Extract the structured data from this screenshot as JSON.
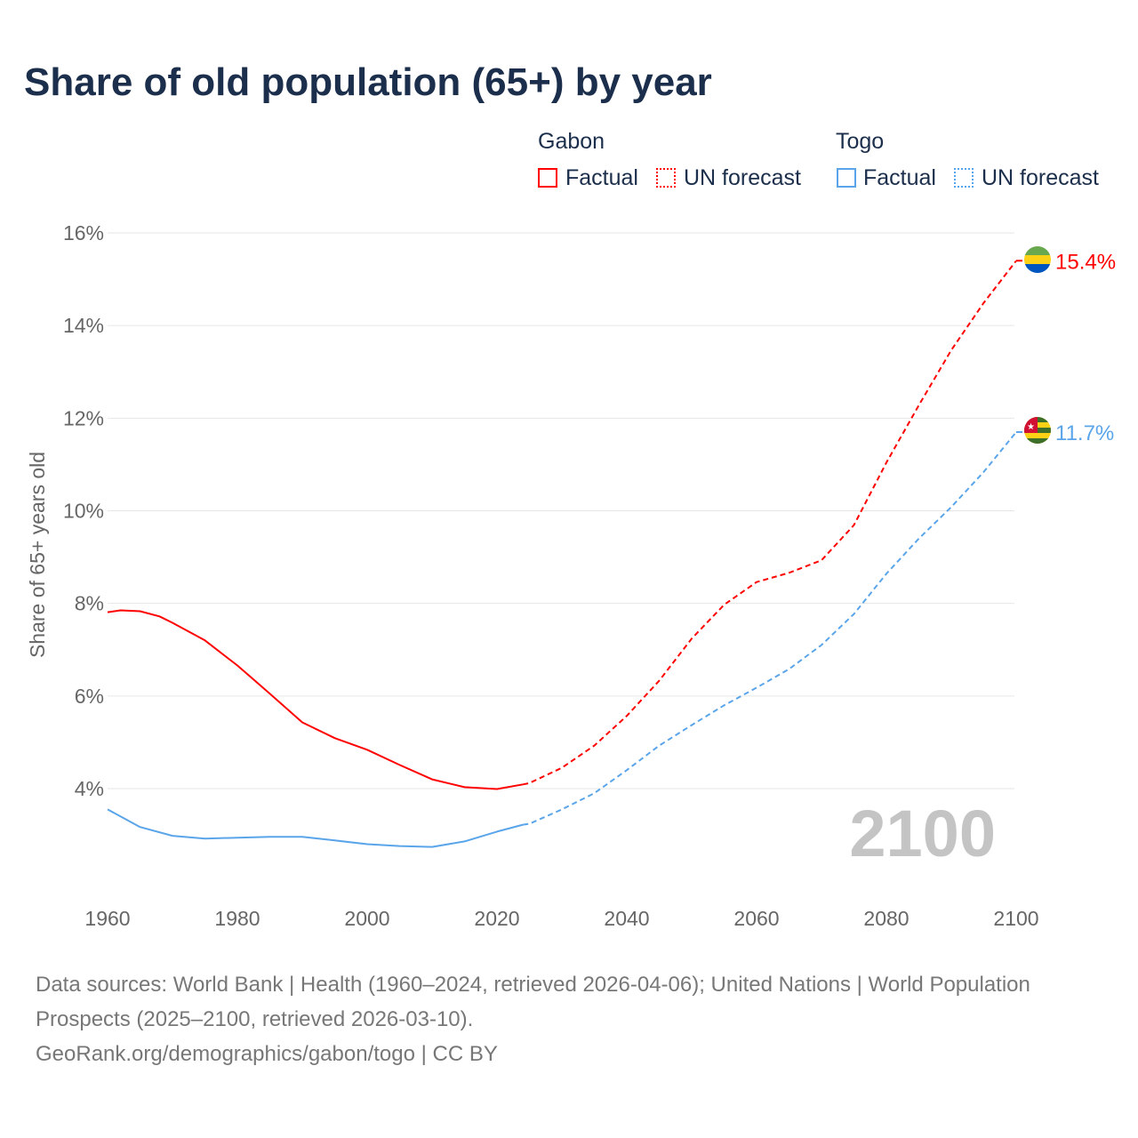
{
  "chart_data": {
    "type": "line",
    "title": "Share of old population (65+) by year",
    "ylabel": "Share of 65+ years old",
    "xlabel": "",
    "xlim": [
      1960,
      2100
    ],
    "ylim": [
      2,
      16
    ],
    "x_ticks": [
      "1960",
      "1980",
      "2000",
      "2020",
      "2040",
      "2060",
      "2080",
      "2100"
    ],
    "y_ticks": [
      "4%",
      "6%",
      "8%",
      "10%",
      "12%",
      "14%",
      "16%"
    ],
    "y_tick_values": [
      4,
      6,
      8,
      10,
      12,
      14,
      16
    ],
    "x_tick_values": [
      1960,
      1980,
      2000,
      2020,
      2040,
      2060,
      2080,
      2100
    ],
    "year_watermark": "2100",
    "legend": {
      "groups": [
        {
          "name": "Gabon",
          "factual": "Factual",
          "forecast": "UN forecast",
          "color": "#ff0000"
        },
        {
          "name": "Togo",
          "factual": "Factual",
          "forecast": "UN forecast",
          "color": "#5aa5ea"
        }
      ]
    },
    "series": [
      {
        "name": "Gabon",
        "kind": "factual",
        "color": "#ff0000",
        "x": [
          1960,
          1962,
          1965,
          1968,
          1970,
          1975,
          1980,
          1985,
          1990,
          1995,
          2000,
          2005,
          2010,
          2015,
          2020,
          2024
        ],
        "values": [
          7.81,
          7.85,
          7.83,
          7.72,
          7.58,
          7.2,
          6.66,
          6.05,
          5.43,
          5.09,
          4.84,
          4.51,
          4.2,
          4.03,
          3.99,
          4.09
        ]
      },
      {
        "name": "Gabon",
        "kind": "forecast",
        "color": "#ff0000",
        "x": [
          2024,
          2025,
          2030,
          2035,
          2040,
          2045,
          2050,
          2055,
          2060,
          2065,
          2070,
          2075,
          2080,
          2085,
          2090,
          2095,
          2100
        ],
        "values": [
          4.09,
          4.12,
          4.45,
          4.93,
          5.57,
          6.33,
          7.24,
          7.97,
          8.46,
          8.66,
          8.93,
          9.69,
          11.04,
          12.28,
          13.47,
          14.49,
          15.4
        ]
      },
      {
        "name": "Togo",
        "kind": "factual",
        "color": "#5aa5ea",
        "x": [
          1960,
          1965,
          1970,
          1975,
          1980,
          1985,
          1990,
          1995,
          2000,
          2005,
          2010,
          2015,
          2020,
          2024
        ],
        "values": [
          3.55,
          3.17,
          2.98,
          2.92,
          2.94,
          2.96,
          2.96,
          2.88,
          2.8,
          2.76,
          2.74,
          2.86,
          3.07,
          3.22
        ]
      },
      {
        "name": "Togo",
        "kind": "forecast",
        "color": "#5aa5ea",
        "x": [
          2024,
          2025,
          2030,
          2035,
          2040,
          2045,
          2050,
          2055,
          2060,
          2065,
          2070,
          2075,
          2080,
          2085,
          2090,
          2095,
          2100
        ],
        "values": [
          3.22,
          3.24,
          3.55,
          3.9,
          4.4,
          4.93,
          5.37,
          5.8,
          6.18,
          6.58,
          7.1,
          7.77,
          8.64,
          9.4,
          10.08,
          10.84,
          11.7
        ]
      }
    ],
    "end_labels": [
      {
        "country": "Gabon",
        "text": "15.4%",
        "value": 15.4,
        "color": "#ff0000"
      },
      {
        "country": "Togo",
        "text": "11.7%",
        "value": 11.7,
        "color": "#5aa5ea"
      }
    ]
  },
  "footer": {
    "sources": "Data sources: World Bank | Health (1960–2024, retrieved 2026-04-06); United Nations | World Population Prospects (2025–2100, retrieved 2026-03-10).",
    "credit": "GeoRank.org/demographics/gabon/togo | CC BY"
  }
}
